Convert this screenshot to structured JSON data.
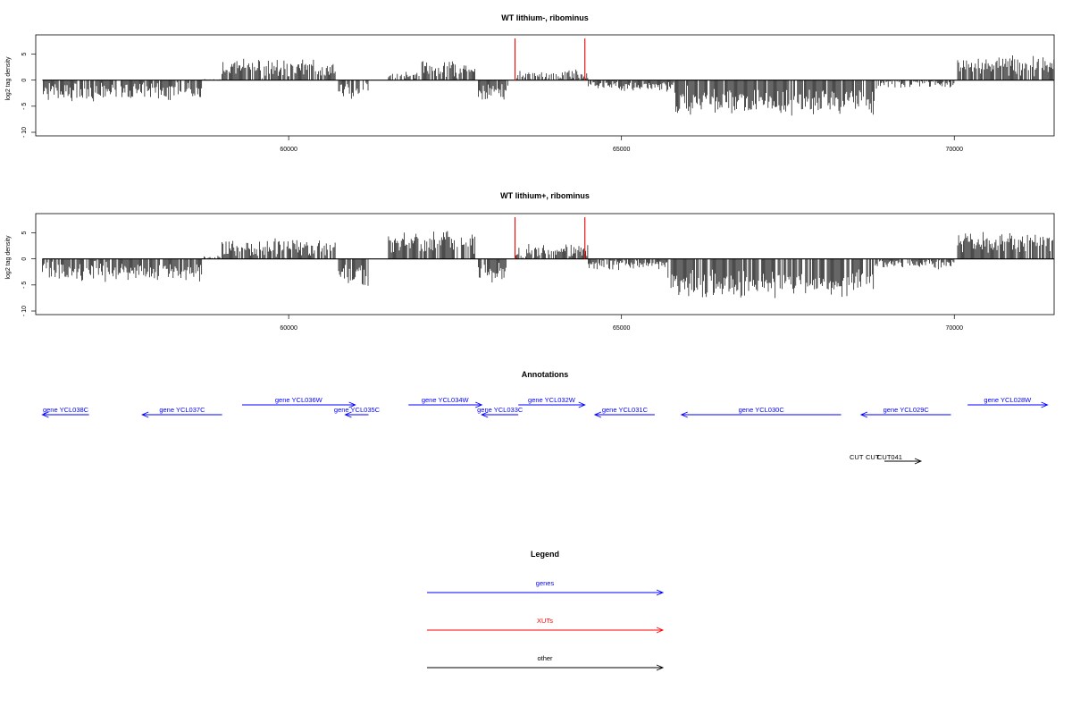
{
  "colors": {
    "gene": "#0000ff",
    "xut": "#ff0000",
    "other": "#000000",
    "density": "#000000",
    "marker": "#ff0000"
  },
  "chart_data": [
    {
      "type": "bar",
      "title": "WT lithium-, ribominus",
      "ylabel": "log2 tag density",
      "ylim": [
        -10,
        8
      ],
      "yticks": [
        -10,
        -5,
        0,
        5
      ],
      "xlim": [
        56200,
        71500
      ],
      "xticks": [
        60000,
        65000,
        70000
      ],
      "red_markers": [
        63400,
        64450
      ],
      "segments": [
        {
          "x0": 56300,
          "x1": 58700,
          "mean": -2.2,
          "amp": 1.8
        },
        {
          "x0": 58700,
          "x1": 59000,
          "mean": 0,
          "amp": 0.2
        },
        {
          "x0": 59000,
          "x1": 60700,
          "mean": 2.2,
          "amp": 1.8
        },
        {
          "x0": 60750,
          "x1": 61200,
          "mean": -2.2,
          "amp": 1.6
        },
        {
          "x0": 61500,
          "x1": 62000,
          "mean": 0.6,
          "amp": 1.0
        },
        {
          "x0": 62000,
          "x1": 62800,
          "mean": 2.0,
          "amp": 1.8
        },
        {
          "x0": 62850,
          "x1": 63300,
          "mean": -2.2,
          "amp": 1.8
        },
        {
          "x0": 63400,
          "x1": 64500,
          "mean": 0.8,
          "amp": 1.2
        },
        {
          "x0": 64500,
          "x1": 65000,
          "mean": -0.8,
          "amp": 0.8
        },
        {
          "x0": 65000,
          "x1": 65800,
          "mean": -1.2,
          "amp": 1.0
        },
        {
          "x0": 65800,
          "x1": 68800,
          "mean": -4.0,
          "amp": 2.6
        },
        {
          "x0": 68800,
          "x1": 70000,
          "mean": -0.7,
          "amp": 0.9
        },
        {
          "x0": 70050,
          "x1": 71500,
          "mean": 2.8,
          "amp": 1.8
        }
      ]
    },
    {
      "type": "bar",
      "title": "WT lithium+, ribominus",
      "ylabel": "log2 tag density",
      "ylim": [
        -10,
        8
      ],
      "yticks": [
        -10,
        -5,
        0,
        5
      ],
      "xlim": [
        56200,
        71500
      ],
      "xticks": [
        60000,
        65000,
        70000
      ],
      "red_markers": [
        63400,
        64450
      ],
      "segments": [
        {
          "x0": 56300,
          "x1": 58700,
          "mean": -2.4,
          "amp": 1.9
        },
        {
          "x0": 58700,
          "x1": 59000,
          "mean": 0.2,
          "amp": 0.4
        },
        {
          "x0": 59000,
          "x1": 60700,
          "mean": 1.9,
          "amp": 1.8
        },
        {
          "x0": 60750,
          "x1": 61200,
          "mean": -3.2,
          "amp": 2.0
        },
        {
          "x0": 61500,
          "x1": 62800,
          "mean": 3.2,
          "amp": 2.2
        },
        {
          "x0": 62850,
          "x1": 63300,
          "mean": -3.0,
          "amp": 2.0
        },
        {
          "x0": 63400,
          "x1": 64500,
          "mean": 1.5,
          "amp": 1.4
        },
        {
          "x0": 64500,
          "x1": 65700,
          "mean": -1.0,
          "amp": 1.0
        },
        {
          "x0": 65700,
          "x1": 68800,
          "mean": -4.8,
          "amp": 2.6
        },
        {
          "x0": 68800,
          "x1": 70000,
          "mean": -0.9,
          "amp": 1.0
        },
        {
          "x0": 70050,
          "x1": 71500,
          "mean": 3.0,
          "amp": 2.0
        }
      ]
    }
  ],
  "annotations": {
    "title": "Annotations",
    "genes": [
      {
        "label": "gene YCL038C",
        "start": 56300,
        "end": 57000,
        "strand": "-",
        "row": 2
      },
      {
        "label": "gene YCL037C",
        "start": 57800,
        "end": 59000,
        "strand": "-",
        "row": 2
      },
      {
        "label": "gene YCL036W",
        "start": 59300,
        "end": 61000,
        "strand": "+",
        "row": 1
      },
      {
        "label": "gene YCL035C",
        "start": 60850,
        "end": 61200,
        "strand": "-",
        "row": 2
      },
      {
        "label": "gene YCL034W",
        "start": 61800,
        "end": 62900,
        "strand": "+",
        "row": 1
      },
      {
        "label": "gene YCL033C",
        "start": 62900,
        "end": 63450,
        "strand": "-",
        "row": 2
      },
      {
        "label": "gene YCL032W",
        "start": 63450,
        "end": 64450,
        "strand": "+",
        "row": 1
      },
      {
        "label": "gene YCL031C",
        "start": 64600,
        "end": 65500,
        "strand": "-",
        "row": 2
      },
      {
        "label": "gene YCL030C",
        "start": 65900,
        "end": 68300,
        "strand": "-",
        "row": 2
      },
      {
        "label": "gene YCL029C",
        "start": 68600,
        "end": 69950,
        "strand": "-",
        "row": 2
      },
      {
        "label": "gene YCL028W",
        "start": 70200,
        "end": 71400,
        "strand": "+",
        "row": 1
      }
    ],
    "other": [
      {
        "label": "CUT",
        "start": 68950,
        "end": 69200,
        "strand": "+"
      },
      {
        "label": "CUT",
        "start": 69200,
        "end": 69450,
        "strand": "+"
      },
      {
        "label": "CUT041",
        "start": 69300,
        "end": 69500,
        "strand": "+"
      }
    ]
  },
  "legend": {
    "title": "Legend",
    "items": [
      {
        "label": "genes",
        "color": "#0000ff"
      },
      {
        "label": "XUTs",
        "color": "#ff0000"
      },
      {
        "label": "other",
        "color": "#000000"
      }
    ]
  }
}
